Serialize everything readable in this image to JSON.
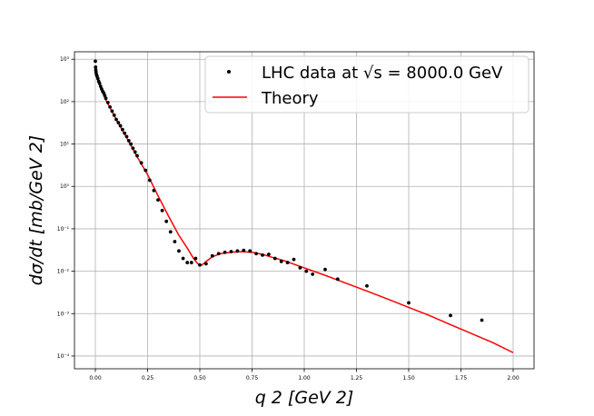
{
  "chart_data": {
    "type": "scatter",
    "xlabel": "q 2 [GeV 2]",
    "ylabel": "dσ/dt [mb/GeV 2]",
    "xlim": [
      -0.1,
      2.1
    ],
    "ylim": [
      5e-05,
      1500
    ],
    "y_scale": "log",
    "grid": true,
    "legend_position": "top-right",
    "x_ticks": [
      "0.00",
      "0.25",
      "0.50",
      "0.75",
      "1.00",
      "1.25",
      "1.50",
      "1.75",
      "2.00"
    ],
    "y_ticks": [
      "10⁻⁴",
      "10⁻³",
      "10⁻²",
      "10⁻¹",
      "10⁰",
      "10¹",
      "10²",
      "10³"
    ],
    "series": [
      {
        "name": "LHC data at √s = 8000.0 GeV",
        "kind": "points",
        "color": "#000000",
        "x": [
          0.0,
          0.001,
          0.002,
          0.003,
          0.005,
          0.008,
          0.012,
          0.016,
          0.02,
          0.025,
          0.03,
          0.035,
          0.04,
          0.045,
          0.05,
          0.06,
          0.07,
          0.08,
          0.09,
          0.1,
          0.11,
          0.12,
          0.13,
          0.14,
          0.15,
          0.16,
          0.17,
          0.18,
          0.19,
          0.2,
          0.22,
          0.24,
          0.26,
          0.28,
          0.3,
          0.32,
          0.34,
          0.36,
          0.38,
          0.4,
          0.42,
          0.44,
          0.46,
          0.48,
          0.5,
          0.53,
          0.56,
          0.59,
          0.62,
          0.65,
          0.68,
          0.71,
          0.74,
          0.77,
          0.8,
          0.83,
          0.86,
          0.89,
          0.92,
          0.95,
          0.98,
          1.01,
          1.04,
          1.1,
          1.16,
          1.3,
          1.5,
          1.7,
          1.85
        ],
        "y": [
          900,
          650,
          560,
          500,
          440,
          400,
          350,
          300,
          270,
          230,
          200,
          175,
          160,
          140,
          120,
          95,
          75,
          60,
          48,
          38,
          32,
          27,
          22,
          18,
          15,
          12,
          10,
          8,
          6.5,
          5.3,
          3.6,
          2.4,
          1.4,
          0.8,
          0.48,
          0.27,
          0.15,
          0.085,
          0.05,
          0.03,
          0.02,
          0.016,
          0.016,
          0.02,
          0.014,
          0.015,
          0.023,
          0.026,
          0.028,
          0.029,
          0.03,
          0.031,
          0.03,
          0.026,
          0.024,
          0.025,
          0.02,
          0.017,
          0.016,
          0.019,
          0.012,
          0.01,
          0.0085,
          0.011,
          0.0065,
          0.0045,
          0.0018,
          0.0009,
          0.0007
        ]
      },
      {
        "name": "Theory",
        "kind": "line",
        "color": "#ff0000",
        "x": [
          0.0,
          0.02,
          0.05,
          0.1,
          0.15,
          0.2,
          0.25,
          0.3,
          0.35,
          0.4,
          0.44,
          0.47,
          0.49,
          0.51,
          0.53,
          0.56,
          0.6,
          0.65,
          0.7,
          0.75,
          0.8,
          0.85,
          0.9,
          1.0,
          1.1,
          1.2,
          1.3,
          1.4,
          1.5,
          1.6,
          1.7,
          1.8,
          1.9,
          2.0
        ],
        "y": [
          450,
          250,
          110,
          38,
          14,
          5.0,
          1.9,
          0.6,
          0.2,
          0.07,
          0.035,
          0.02,
          0.015,
          0.014,
          0.017,
          0.022,
          0.026,
          0.028,
          0.029,
          0.028,
          0.025,
          0.021,
          0.018,
          0.012,
          0.008,
          0.0052,
          0.0034,
          0.0022,
          0.0014,
          0.0009,
          0.00055,
          0.00034,
          0.00021,
          0.00012
        ]
      }
    ]
  }
}
